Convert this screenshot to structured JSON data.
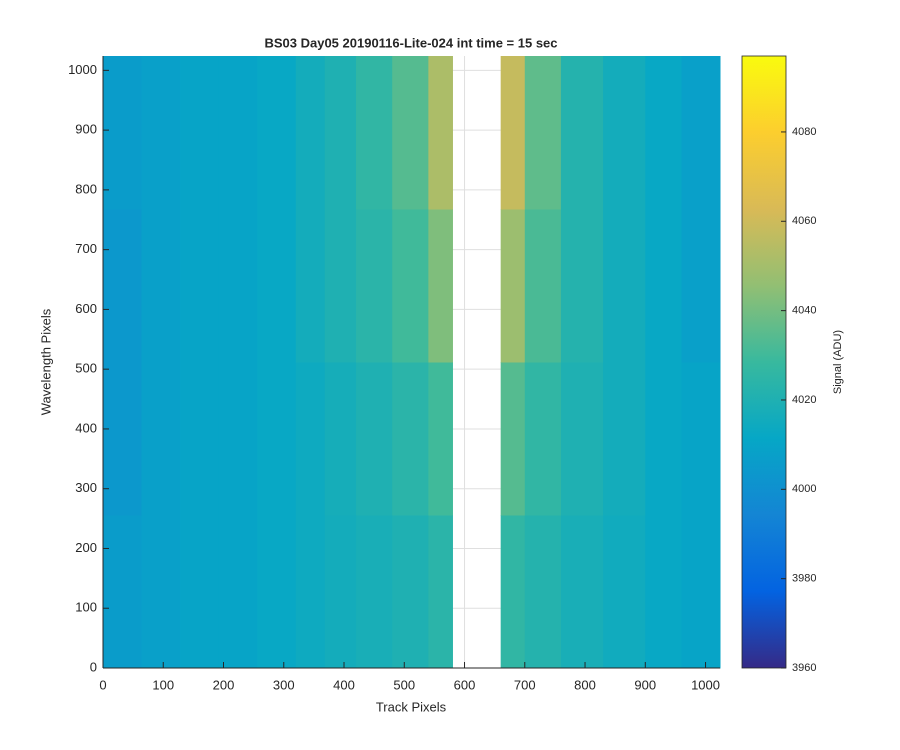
{
  "chart_data": {
    "type": "heatmap",
    "title": "BS03 Day05 20190116-Lite-024 int time = 15 sec",
    "x_label": "Track Pixels",
    "y_label": "Wavelength Pixels",
    "colorbar_label": "Signal (ADU)",
    "colormap": "parula",
    "x": [
      0,
      64,
      128,
      192,
      256,
      320,
      368,
      420,
      480,
      540,
      580,
      660,
      700,
      760,
      830,
      900,
      960,
      1024
    ],
    "y": [
      0,
      256,
      512,
      768,
      1024
    ],
    "z": [
      [
        4006,
        4008,
        4010,
        4010,
        4012,
        4014,
        4016,
        4018,
        4020,
        4024,
        null,
        4026,
        4022,
        4018,
        4015,
        4012,
        4010
      ],
      [
        4004,
        4008,
        4010,
        4010,
        4012,
        4014,
        4017,
        4020,
        4024,
        4030,
        null,
        4034,
        4026,
        4020,
        4016,
        4012,
        4010
      ],
      [
        4004,
        4008,
        4010,
        4010,
        4012,
        4016,
        4020,
        4024,
        4030,
        4042,
        null,
        4048,
        4032,
        4022,
        4016,
        4012,
        4008
      ],
      [
        4006,
        4008,
        4010,
        4010,
        4012,
        4016,
        4020,
        4026,
        4034,
        4052,
        null,
        4058,
        4036,
        4022,
        4016,
        4012,
        4008
      ]
    ],
    "xlim": [
      0,
      1024
    ],
    "xticks": [
      0,
      100,
      200,
      300,
      400,
      500,
      600,
      700,
      800,
      900,
      1000
    ],
    "ylim": [
      0,
      1024
    ],
    "yticks": [
      0,
      100,
      200,
      300,
      400,
      500,
      600,
      700,
      800,
      900,
      1000
    ],
    "clim": [
      3960,
      4097
    ],
    "cticks": [
      3960,
      3980,
      4000,
      4020,
      4040,
      4060,
      4080
    ],
    "grid": true
  }
}
